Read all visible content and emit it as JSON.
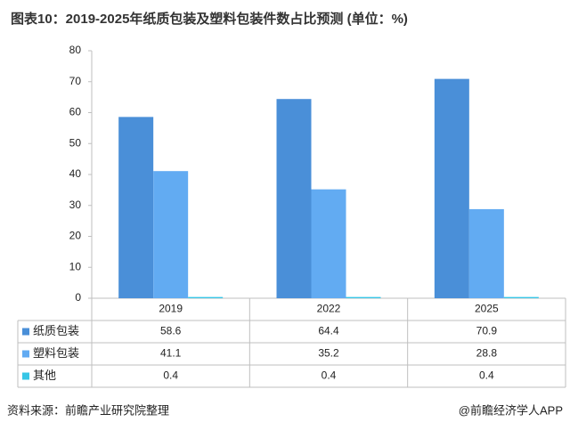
{
  "chart_data": {
    "type": "bar",
    "title": "图表10：2019-2025年纸质包装及塑料包装件数占比预测 (单位：%)",
    "categories": [
      "2019",
      "2022",
      "2025"
    ],
    "series": [
      {
        "name": "纸质包装",
        "color": "#4a8fd8",
        "values": [
          58.6,
          64.4,
          70.9
        ]
      },
      {
        "name": "塑料包装",
        "color": "#62abf2",
        "values": [
          41.1,
          35.2,
          28.8
        ]
      },
      {
        "name": "其他",
        "color": "#37c6e6",
        "values": [
          0.4,
          0.4,
          0.4
        ]
      }
    ],
    "ylim": [
      0,
      80
    ],
    "yticks": [
      0,
      10,
      20,
      30,
      40,
      50,
      60,
      70,
      80
    ],
    "source": "资料来源：前瞻产业研究院整理",
    "credit": "@前瞻经济学人APP"
  }
}
